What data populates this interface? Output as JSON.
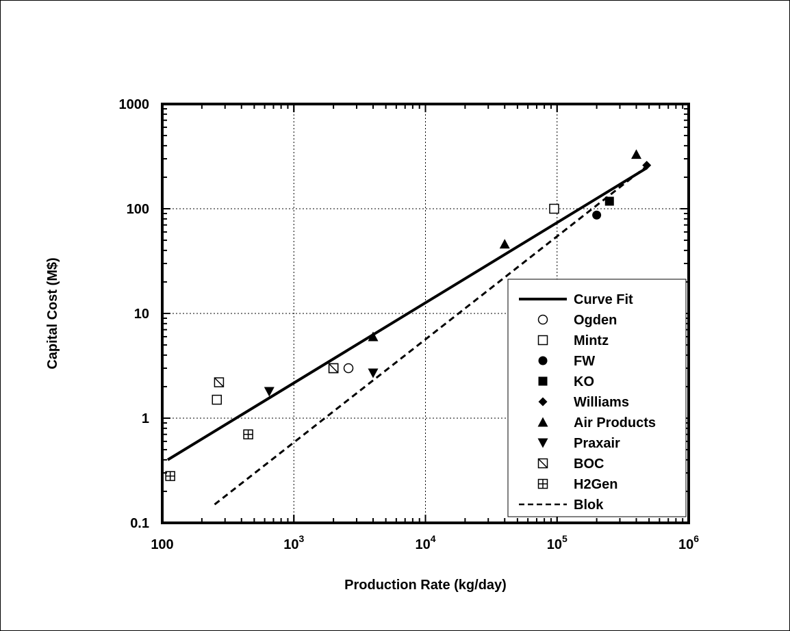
{
  "chart_data": {
    "type": "scatter",
    "title": "",
    "xlabel": "Production Rate (kg/day)",
    "ylabel": "Capital Cost (M$)",
    "x_scale": "log",
    "y_scale": "log",
    "xlim": [
      100,
      1000000
    ],
    "ylim": [
      0.1,
      1000
    ],
    "grid": true,
    "legend_position": "lower-right",
    "x_ticks": [
      {
        "value": 100,
        "base": "100",
        "exp": ""
      },
      {
        "value": 1000,
        "base": "10",
        "exp": "3"
      },
      {
        "value": 10000,
        "base": "10",
        "exp": "4"
      },
      {
        "value": 100000,
        "base": "10",
        "exp": "5"
      },
      {
        "value": 1000000,
        "base": "10",
        "exp": "6"
      }
    ],
    "y_ticks": [
      {
        "value": 0.1,
        "label": "0.1"
      },
      {
        "value": 1,
        "label": "1"
      },
      {
        "value": 10,
        "label": "10"
      },
      {
        "value": 100,
        "label": "100"
      },
      {
        "value": 1000,
        "label": "1000"
      }
    ],
    "series": [
      {
        "name": "Curve Fit",
        "kind": "line",
        "style": "solid",
        "color": "#000000",
        "points": [
          [
            110,
            0.4
          ],
          [
            480000,
            245
          ]
        ]
      },
      {
        "name": "Ogden",
        "kind": "marker",
        "marker": "circle-open",
        "color": "#000000",
        "points": [
          [
            2600,
            3
          ]
        ]
      },
      {
        "name": "Mintz",
        "kind": "marker",
        "marker": "square-open",
        "color": "#000000",
        "points": [
          [
            260,
            1.5
          ],
          [
            2000,
            3
          ],
          [
            95000,
            100
          ]
        ]
      },
      {
        "name": "FW",
        "kind": "marker",
        "marker": "circle-filled",
        "color": "#000000",
        "points": [
          [
            200000,
            87
          ]
        ]
      },
      {
        "name": "KO",
        "kind": "marker",
        "marker": "square-filled",
        "color": "#000000",
        "points": [
          [
            250000,
            118
          ]
        ]
      },
      {
        "name": "Williams",
        "kind": "marker",
        "marker": "diamond-filled",
        "color": "#000000",
        "points": [
          [
            480000,
            260
          ]
        ]
      },
      {
        "name": "Air Products",
        "kind": "marker",
        "marker": "triangle-up-filled",
        "color": "#000000",
        "points": [
          [
            4000,
            6
          ],
          [
            40000,
            46
          ],
          [
            400000,
            330
          ]
        ]
      },
      {
        "name": "Praxair",
        "kind": "marker",
        "marker": "triangle-down-filled",
        "color": "#000000",
        "points": [
          [
            650,
            1.8
          ],
          [
            4000,
            2.7
          ]
        ]
      },
      {
        "name": "BOC",
        "kind": "marker",
        "marker": "square-slash",
        "color": "#000000",
        "points": [
          [
            270,
            2.2
          ],
          [
            2000,
            3
          ]
        ]
      },
      {
        "name": "H2Gen",
        "kind": "marker",
        "marker": "square-cross",
        "color": "#000000",
        "points": [
          [
            115,
            0.28
          ],
          [
            450,
            0.7
          ]
        ]
      },
      {
        "name": "Blok",
        "kind": "line",
        "style": "dashed",
        "color": "#000000",
        "points": [
          [
            250,
            0.15
          ],
          [
            480000,
            255
          ]
        ]
      }
    ]
  }
}
